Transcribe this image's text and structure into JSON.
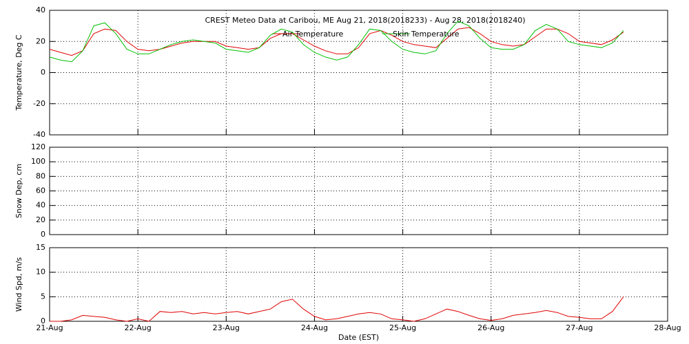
{
  "chart_data": [
    {
      "type": "line",
      "title": "CREST Meteo Data at Caribou, ME   Aug 21, 2018(2018233) - Aug 28, 2018(2018240)",
      "ylabel": "Temperature, Deg C",
      "xlim": [
        0,
        7
      ],
      "ylim": [
        -40,
        40
      ],
      "yticks": [
        -40,
        -20,
        0,
        20,
        40
      ],
      "x": [
        0,
        0.125,
        0.25,
        0.375,
        0.5,
        0.625,
        0.75,
        0.875,
        1,
        1.125,
        1.25,
        1.375,
        1.5,
        1.625,
        1.75,
        1.875,
        2,
        2.125,
        2.25,
        2.375,
        2.5,
        2.625,
        2.75,
        2.875,
        3,
        3.125,
        3.25,
        3.375,
        3.5,
        3.625,
        3.75,
        3.875,
        4,
        4.125,
        4.25,
        4.375,
        4.5,
        4.625,
        4.75,
        4.875,
        5,
        5.125,
        5.25,
        5.375,
        5.5,
        5.625,
        5.75,
        5.875,
        6,
        6.125,
        6.25,
        6.375,
        6.5
      ],
      "series": [
        {
          "name": "Air Temperature",
          "color": "#e00000",
          "values": [
            15,
            13,
            11,
            14,
            25,
            28,
            27,
            20,
            15,
            14,
            15,
            17,
            19,
            20,
            20,
            20,
            17,
            16,
            15,
            16,
            22,
            25,
            25,
            21,
            17,
            14,
            12,
            12,
            16,
            25,
            27,
            24,
            20,
            18,
            17,
            16,
            22,
            28,
            29,
            25,
            20,
            18,
            17,
            18,
            23,
            28,
            28,
            25,
            20,
            19,
            18,
            21,
            26
          ]
        },
        {
          "name": "Skin Temperature",
          "color": "#00c000",
          "values": [
            10,
            8,
            7,
            14,
            30,
            32,
            25,
            15,
            12,
            12,
            15,
            18,
            20,
            21,
            20,
            19,
            15,
            14,
            13,
            16,
            24,
            28,
            26,
            18,
            13,
            10,
            8,
            10,
            18,
            28,
            27,
            20,
            15,
            13,
            12,
            14,
            25,
            33,
            30,
            22,
            16,
            15,
            15,
            18,
            27,
            31,
            28,
            20,
            18,
            17,
            16,
            19,
            27
          ]
        }
      ]
    },
    {
      "type": "line",
      "ylabel": "Snow Dep, cm",
      "xlim": [
        0,
        7
      ],
      "ylim": [
        0,
        120
      ],
      "yticks": [
        0,
        20,
        40,
        60,
        80,
        100,
        120
      ],
      "series": []
    },
    {
      "type": "line",
      "ylabel": "Wind Spd, m/s",
      "xlabel": "Date (EST)",
      "xlim": [
        0,
        7
      ],
      "xticks": [
        {
          "value": 0,
          "label": "21-Aug"
        },
        {
          "value": 1,
          "label": "22-Aug"
        },
        {
          "value": 2,
          "label": "23-Aug"
        },
        {
          "value": 3,
          "label": "24-Aug"
        },
        {
          "value": 4,
          "label": "25-Aug"
        },
        {
          "value": 5,
          "label": "26-Aug"
        },
        {
          "value": 6,
          "label": "27-Aug"
        },
        {
          "value": 7,
          "label": "28-Aug"
        }
      ],
      "ylim": [
        0,
        15
      ],
      "yticks": [
        0,
        5,
        10,
        15
      ],
      "x": [
        0,
        0.125,
        0.25,
        0.375,
        0.5,
        0.625,
        0.75,
        0.875,
        1,
        1.125,
        1.25,
        1.375,
        1.5,
        1.625,
        1.75,
        1.875,
        2,
        2.125,
        2.25,
        2.375,
        2.5,
        2.625,
        2.75,
        2.875,
        3,
        3.125,
        3.25,
        3.375,
        3.5,
        3.625,
        3.75,
        3.875,
        4,
        4.125,
        4.25,
        4.375,
        4.5,
        4.625,
        4.75,
        4.875,
        5,
        5.125,
        5.25,
        5.375,
        5.5,
        5.625,
        5.75,
        5.875,
        6,
        6.125,
        6.25,
        6.375,
        6.5
      ],
      "series": [
        {
          "color": "#e00000",
          "values": [
            0,
            0,
            0.3,
            1.2,
            1,
            0.8,
            0.3,
            0,
            0.5,
            0,
            2,
            1.8,
            2,
            1.5,
            1.8,
            1.5,
            1.8,
            2,
            1.5,
            2,
            2.5,
            4,
            4.5,
            2.5,
            1,
            0.3,
            0.5,
            1,
            1.5,
            1.8,
            1.5,
            0.5,
            0.3,
            0,
            0.5,
            1.5,
            2.5,
            2,
            1.2,
            0.5,
            0.2,
            0.5,
            1.2,
            1.5,
            1.8,
            2.2,
            1.8,
            1,
            0.8,
            0.5,
            0.5,
            2,
            5
          ]
        }
      ]
    }
  ]
}
